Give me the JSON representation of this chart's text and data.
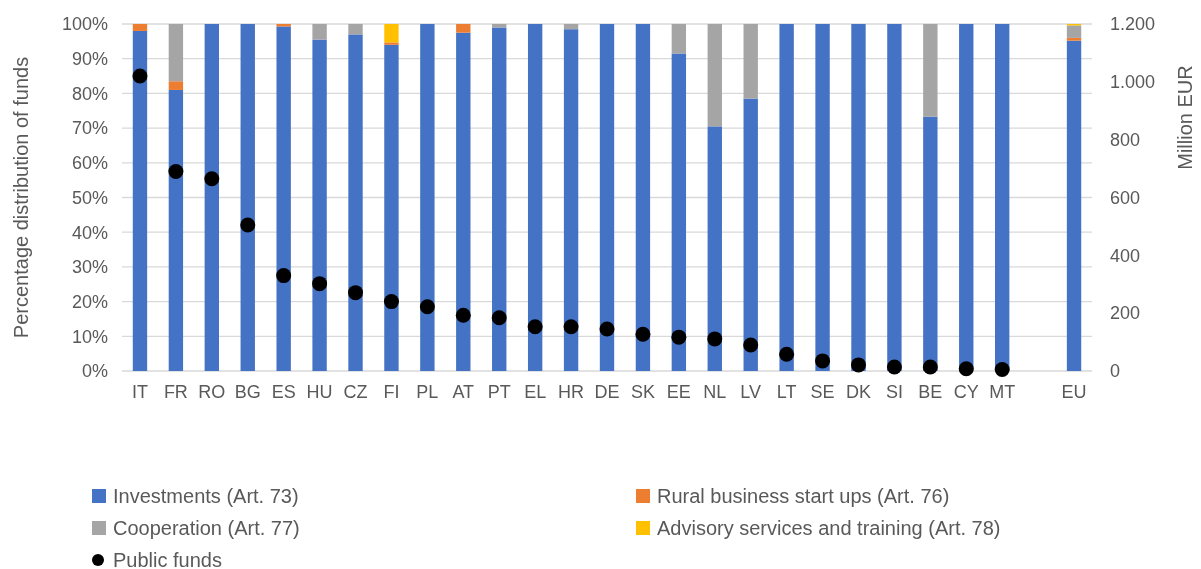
{
  "chart_data": {
    "type": "bar",
    "stacked": true,
    "categories": [
      "IT",
      "FR",
      "RO",
      "BG",
      "ES",
      "HU",
      "CZ",
      "FI",
      "PL",
      "AT",
      "PT",
      "EL",
      "HR",
      "DE",
      "SK",
      "EE",
      "NL",
      "LV",
      "LT",
      "SE",
      "DK",
      "SI",
      "BE",
      "CY",
      "MT",
      null,
      "EU"
    ],
    "ylabel": "Percentage distribution of funds",
    "y2label": "Million EUR",
    "ylim": [
      0,
      100
    ],
    "yticks": [
      {
        "value": 0,
        "label": "0%"
      },
      {
        "value": 10,
        "label": "10%"
      },
      {
        "value": 20,
        "label": "20%"
      },
      {
        "value": 30,
        "label": "30%"
      },
      {
        "value": 40,
        "label": "40%"
      },
      {
        "value": 50,
        "label": "50%"
      },
      {
        "value": 60,
        "label": "60%"
      },
      {
        "value": 70,
        "label": "70%"
      },
      {
        "value": 80,
        "label": "80%"
      },
      {
        "value": 90,
        "label": "90%"
      },
      {
        "value": 100,
        "label": "100%"
      }
    ],
    "y2lim": [
      0,
      1200
    ],
    "y2ticks": [
      0,
      200,
      400,
      600,
      800,
      {
        "value": 1000,
        "label": "1.000"
      },
      {
        "value": 1200,
        "label": "1.200"
      }
    ],
    "grid": "y",
    "legend": "bottom",
    "series": [
      {
        "name": "Investments (Art. 73)",
        "color": "#4472c4",
        "values": [
          98,
          81,
          100,
          100,
          99.3,
          95.5,
          97,
          94,
          100,
          97.5,
          99,
          100,
          98.5,
          100,
          100,
          91.5,
          70.5,
          78.5,
          100,
          100,
          100,
          100,
          73.3,
          100,
          100,
          null,
          95.2
        ]
      },
      {
        "name": "Rural business start ups (Art. 76)",
        "color": "#ed7d31",
        "values": [
          2,
          2.5,
          0,
          0,
          0.7,
          0,
          0,
          0.7,
          0,
          2.5,
          0,
          0,
          0,
          0,
          0,
          0,
          0,
          0,
          0,
          0,
          0,
          0,
          0,
          0,
          0,
          null,
          0.8
        ]
      },
      {
        "name": "Cooperation (Art. 77)",
        "color": "#a5a5a5",
        "values": [
          0,
          16.5,
          0,
          0,
          0,
          4.5,
          3,
          0,
          0,
          0,
          1,
          0,
          1.5,
          0,
          0,
          8.5,
          29.5,
          21.5,
          0,
          0,
          0,
          0,
          26.7,
          0,
          0,
          null,
          3.6
        ]
      },
      {
        "name": "Advisory services and training (Art. 78)",
        "color": "#ffc000",
        "values": [
          0,
          0,
          0,
          0,
          0,
          0,
          0,
          5.3,
          0,
          0,
          0,
          0,
          0,
          0,
          0,
          0,
          0,
          0,
          0,
          0,
          0,
          0,
          0,
          0,
          0,
          null,
          0.4
        ]
      },
      {
        "name": "Public funds",
        "type": "scatter",
        "axis": "y2",
        "marker": "circle",
        "color": "#000000",
        "values": [
          1020,
          690,
          665,
          505,
          330,
          302,
          271,
          240,
          222,
          193,
          184,
          153,
          153,
          145,
          127,
          117,
          111,
          90,
          58,
          35,
          21,
          14,
          14,
          8,
          5,
          null,
          null
        ]
      }
    ]
  }
}
